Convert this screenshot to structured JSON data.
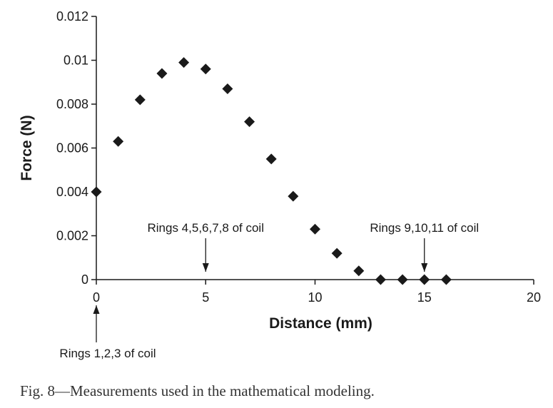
{
  "chart_data": {
    "type": "scatter",
    "xlabel": "Distance (mm)",
    "ylabel": "Force (N)",
    "xlim": [
      0,
      20
    ],
    "ylim": [
      0,
      0.012
    ],
    "x_ticks": [
      "0",
      "5",
      "10",
      "15",
      "20"
    ],
    "y_ticks": [
      "0",
      "0.002",
      "0.004",
      "0.006",
      "0.008",
      "0.01",
      "0.012"
    ],
    "grid": false,
    "marker": "diamond",
    "marker_color": "#1a1a1a",
    "series": [
      {
        "x": [
          0,
          1,
          2,
          3,
          4,
          5,
          6,
          7,
          8,
          9,
          10,
          11,
          12,
          13,
          14,
          15,
          16
        ],
        "y": [
          0.004,
          0.0063,
          0.0082,
          0.0094,
          0.0099,
          0.0096,
          0.0087,
          0.0072,
          0.0055,
          0.0038,
          0.0023,
          0.0012,
          0.0004,
          0,
          0,
          0,
          0
        ]
      }
    ],
    "annotations": [
      {
        "text": "Rings 1,2,3 of coil",
        "x": 0,
        "direction": "up-from-below"
      },
      {
        "text": "Rings 4,5,6,7,8 of coil",
        "x": 5,
        "direction": "down-from-above"
      },
      {
        "text": "Rings 9,10,11 of coil",
        "x": 15,
        "direction": "down-from-above"
      }
    ]
  },
  "caption": "Fig. 8—Measurements used in the mathematical modeling."
}
